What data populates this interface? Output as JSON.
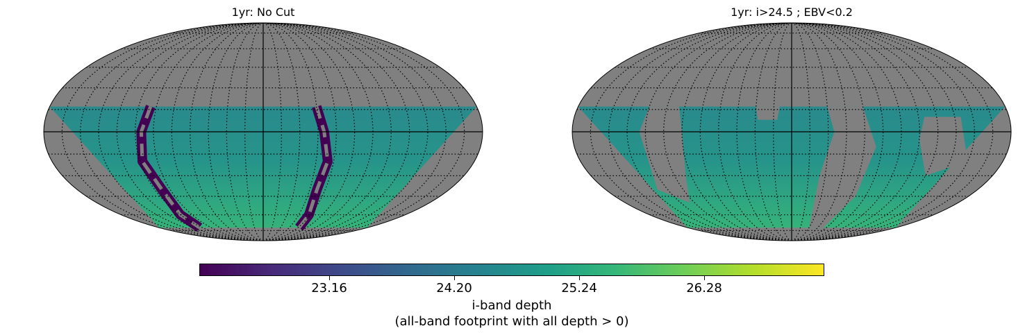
{
  "chart_data": [
    {
      "type": "heatmap",
      "projection": "mollweide",
      "title": "1yr: No Cut",
      "graticule": "dotted",
      "missing_color": "#808080"
    },
    {
      "type": "heatmap",
      "projection": "mollweide",
      "title": "1yr: i>24.5 ; EBV<0.2",
      "graticule": "dotted",
      "missing_color": "#808080"
    }
  ],
  "colorbar": {
    "colormap": "viridis",
    "range": [
      22.12,
      27.32
    ],
    "ticks": [
      "23.16",
      "24.20",
      "25.24",
      "26.28"
    ],
    "label_line1": "i-band depth",
    "label_line2": "(all-band footprint with all depth > 0)"
  },
  "colors": {
    "viridis": [
      "#440154",
      "#482878",
      "#3e4989",
      "#31688e",
      "#26828e",
      "#1f9e89",
      "#35b779",
      "#6ece58",
      "#b5de2b",
      "#fde725"
    ]
  }
}
